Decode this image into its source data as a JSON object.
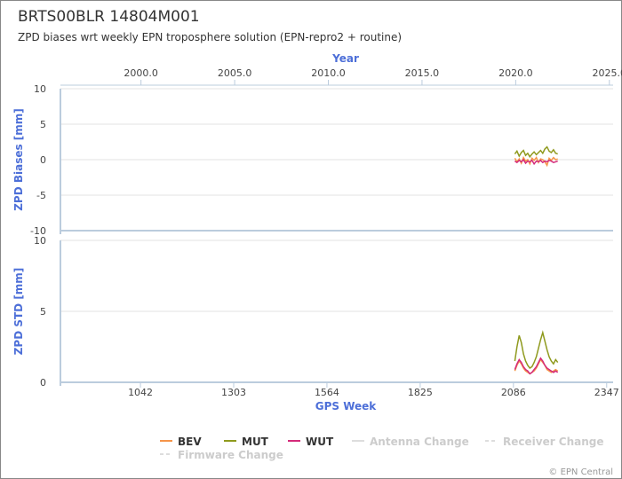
{
  "title": "BRTS00BLR 14804M001",
  "subtitle": "ZPD biases wrt weekly EPN troposphere solution (EPN-repro2 + routine)",
  "chart_data": [
    {
      "type": "line",
      "y_label": "ZPD Biases [mm]",
      "x2_label": "Year",
      "x2lim": [
        1995.7,
        2025.2
      ],
      "x2ticks": [
        {
          "value": 2000,
          "label": "2000.0"
        },
        {
          "value": 2005,
          "label": "2005.0"
        },
        {
          "value": 2010,
          "label": "2010.0"
        },
        {
          "value": 2015,
          "label": "2015.0"
        },
        {
          "value": 2020,
          "label": "2020.0"
        },
        {
          "value": 2025,
          "label": "2025.0"
        }
      ],
      "xlim": [
        818,
        2365
      ],
      "ylim": [
        -10,
        10
      ],
      "yticks": [
        -10,
        -5,
        0,
        5,
        10
      ],
      "x": [
        2090,
        2096,
        2102,
        2108,
        2114,
        2120,
        2126,
        2132,
        2138,
        2144,
        2150,
        2156,
        2162,
        2168,
        2174,
        2180,
        2186,
        2192,
        2198,
        2204,
        2210
      ],
      "series": [
        {
          "name": "BEV",
          "color": "#f5954a",
          "values": [
            0.2,
            -0.3,
            0.1,
            -0.5,
            0.3,
            -0.2,
            0.0,
            -0.6,
            0.2,
            -0.1,
            0.3,
            -0.4,
            0.1,
            0.0,
            -0.3,
            -0.8,
            0.2,
            -0.1,
            0.3,
            0.0,
            0.1
          ]
        },
        {
          "name": "MUT",
          "color": "#8f9a1e",
          "values": [
            0.8,
            1.2,
            0.5,
            1.0,
            1.3,
            0.6,
            0.9,
            0.4,
            0.8,
            1.1,
            0.7,
            1.0,
            1.3,
            0.9,
            1.5,
            1.8,
            1.2,
            1.0,
            1.4,
            0.9,
            0.8
          ]
        },
        {
          "name": "WUT",
          "color": "#d42a7a",
          "values": [
            -0.2,
            -0.4,
            -0.1,
            -0.3,
            0.0,
            -0.5,
            -0.2,
            -0.3,
            -0.1,
            -0.6,
            -0.2,
            -0.3,
            -0.1,
            -0.4,
            -0.2,
            -0.3,
            -0.1,
            -0.2,
            -0.4,
            -0.3,
            -0.2
          ]
        }
      ]
    },
    {
      "type": "line",
      "y_label": "ZPD STD [mm]",
      "x_label": "GPS Week",
      "xlim": [
        818,
        2365
      ],
      "xticks": [
        1042,
        1303,
        1564,
        1825,
        2086,
        2347
      ],
      "ylim": [
        0,
        10
      ],
      "yticks": [
        0,
        5,
        10
      ],
      "x": [
        2090,
        2096,
        2102,
        2108,
        2114,
        2120,
        2126,
        2132,
        2138,
        2144,
        2150,
        2156,
        2162,
        2168,
        2174,
        2180,
        2186,
        2192,
        2198,
        2204,
        2210
      ],
      "series": [
        {
          "color": "#f5954a",
          "values": [
            0.8,
            1.2,
            1.5,
            1.3,
            1.0,
            0.8,
            0.7,
            0.6,
            0.7,
            0.8,
            1.0,
            1.3,
            1.6,
            1.4,
            1.2,
            0.9,
            0.8,
            0.7,
            0.8,
            0.9,
            0.8
          ]
        },
        {
          "color": "#8f9a1e",
          "values": [
            1.5,
            2.5,
            3.3,
            2.8,
            2.0,
            1.5,
            1.2,
            1.0,
            1.1,
            1.4,
            1.8,
            2.4,
            3.0,
            3.5,
            2.9,
            2.3,
            1.8,
            1.5,
            1.3,
            1.6,
            1.4
          ]
        },
        {
          "color": "#d42a7a",
          "values": [
            0.9,
            1.3,
            1.6,
            1.4,
            1.1,
            0.9,
            0.8,
            0.6,
            0.7,
            0.9,
            1.1,
            1.4,
            1.7,
            1.5,
            1.2,
            1.0,
            0.9,
            0.8,
            0.7,
            0.8,
            0.7
          ]
        }
      ]
    }
  ],
  "legend_extra": [
    "Antenna Change",
    "Receiver Change",
    "Firmware Change"
  ],
  "footer": "© EPN Central"
}
